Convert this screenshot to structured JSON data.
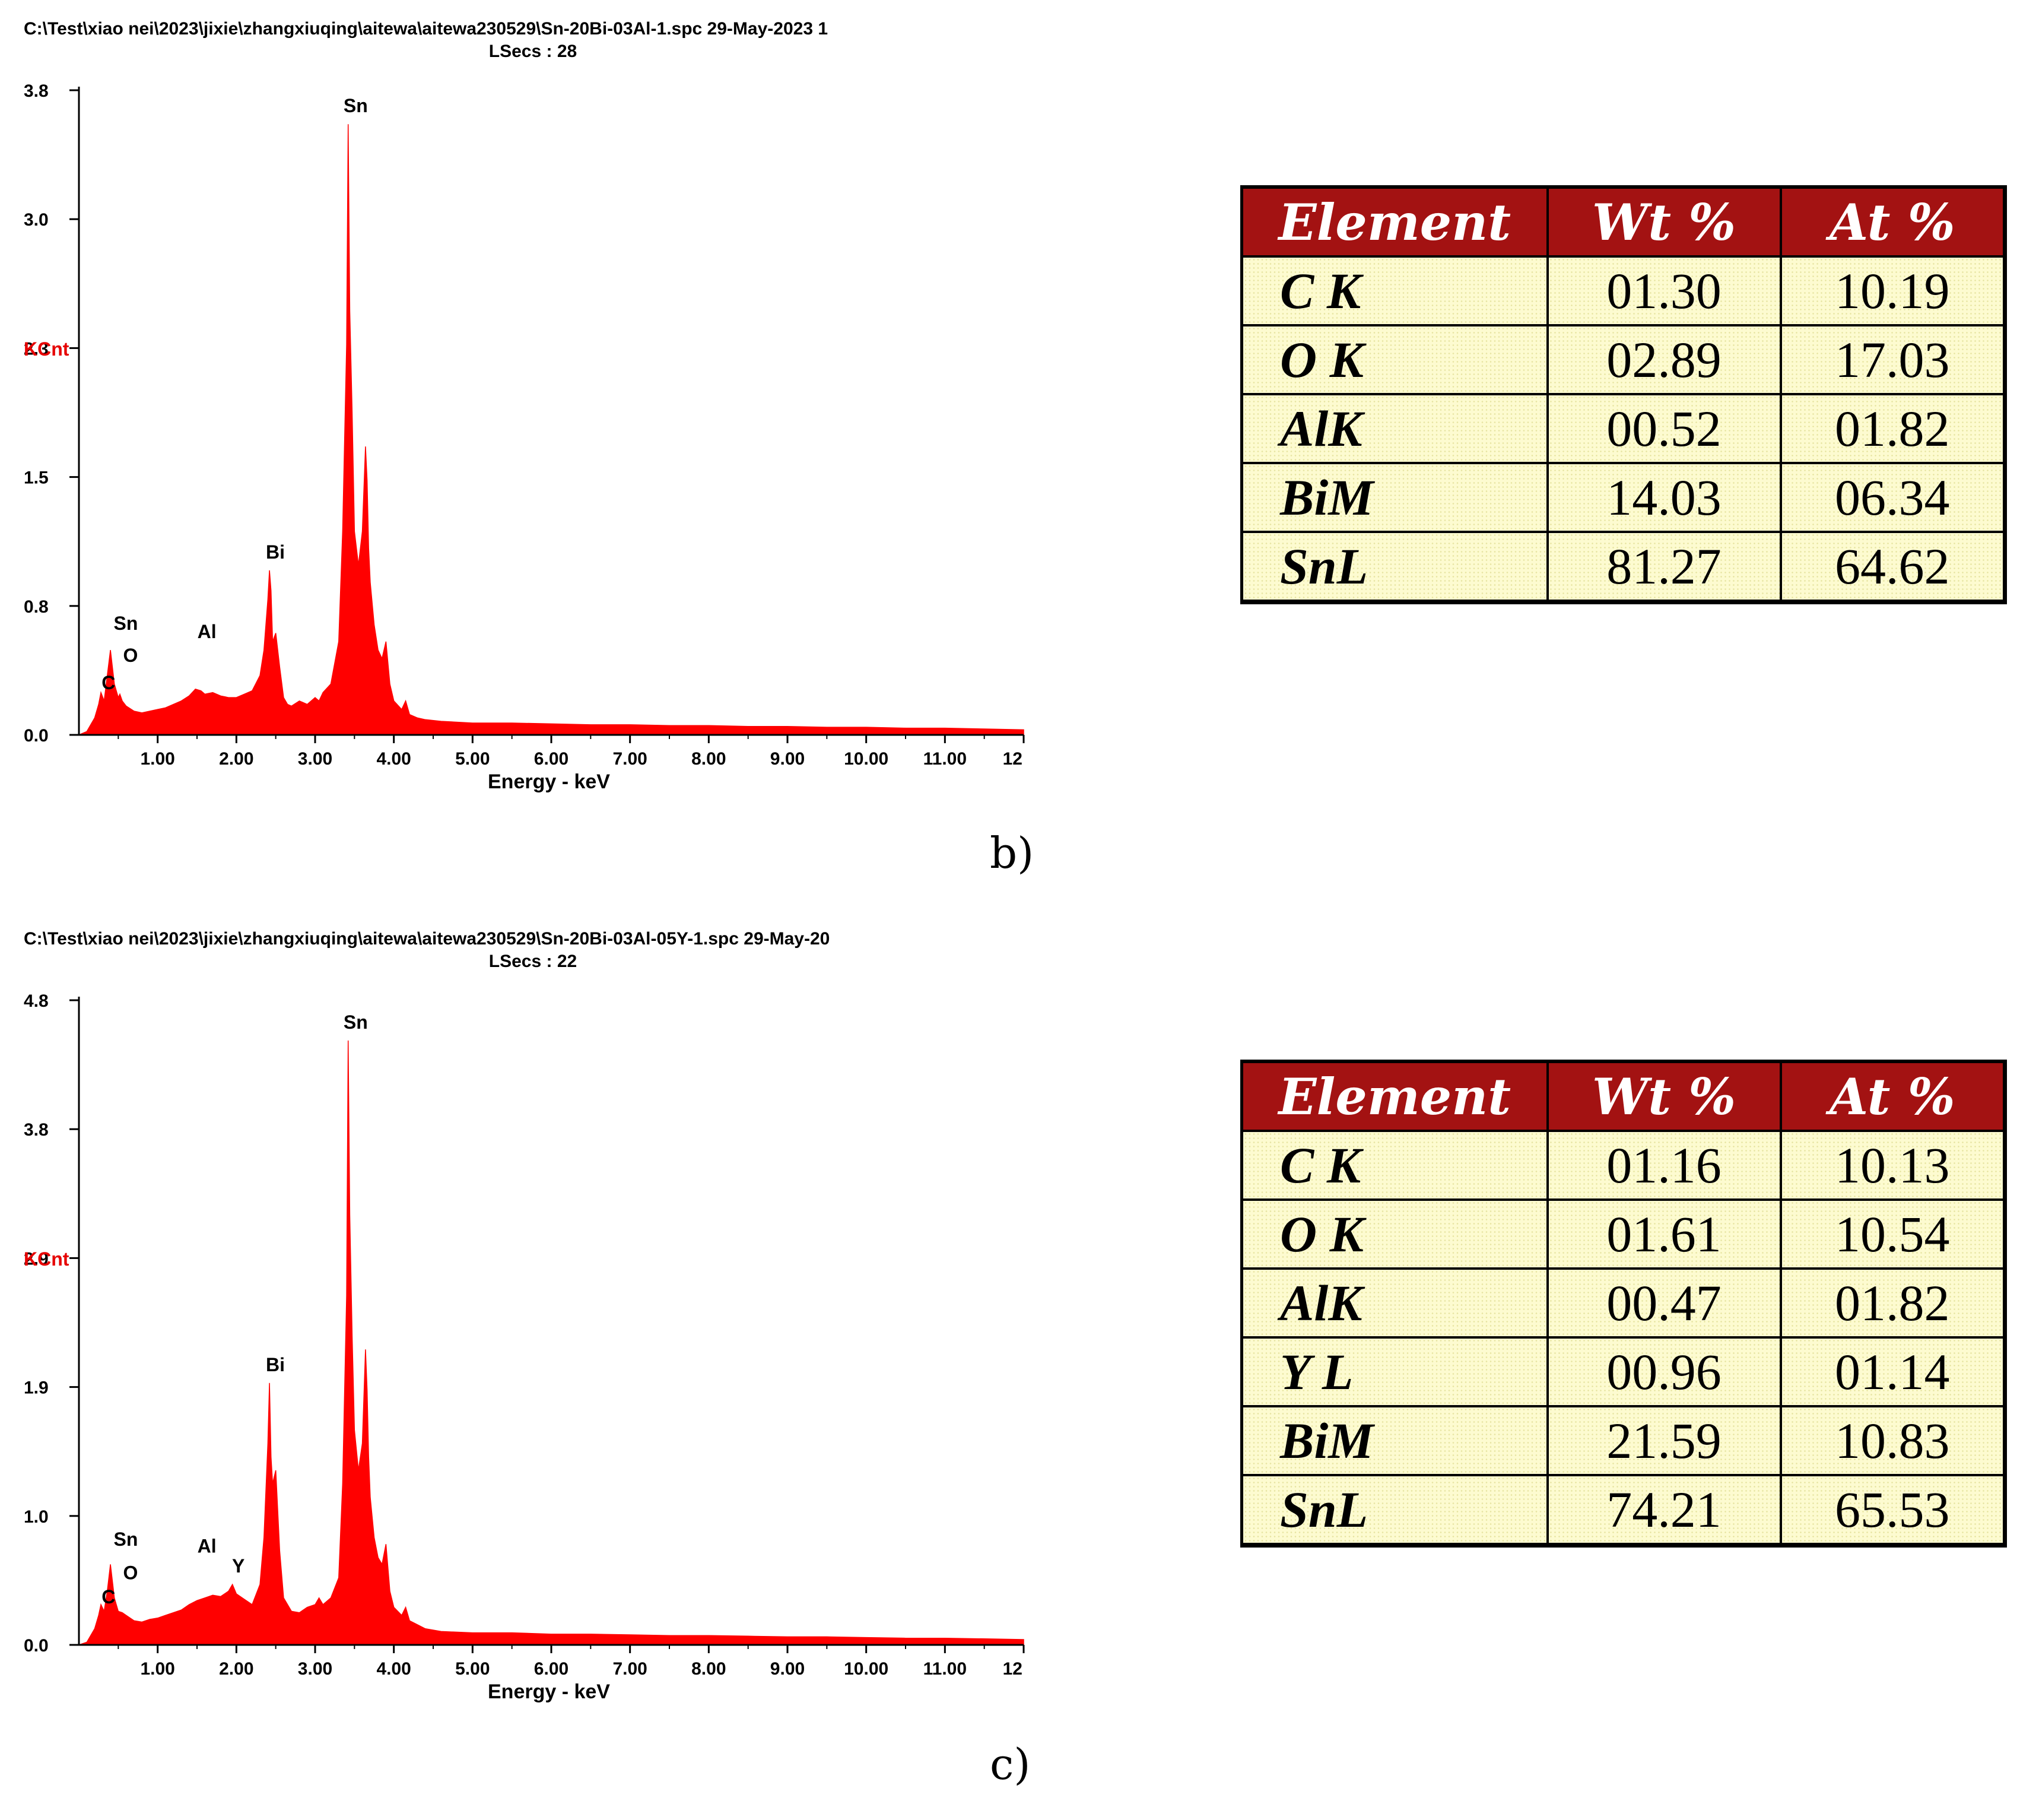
{
  "chart_data": [
    {
      "panel_label": "b)",
      "type": "line",
      "title": "C:\\Test\\xiao nei\\2023\\jixie\\zhangxiuqing\\aitewa\\aitewa230529\\Sn-20Bi-03Al-1.spc  29-May-2023 1",
      "subtitle": "LSecs :  28",
      "xlabel": "Energy - keV",
      "ylabel": "KCnt",
      "xlim": [
        0,
        12
      ],
      "ylim": [
        0,
        3.8
      ],
      "x_ticks": [
        "1.00",
        "2.00",
        "3.00",
        "4.00",
        "5.00",
        "6.00",
        "7.00",
        "8.00",
        "9.00",
        "10.00",
        "11.00",
        "12"
      ],
      "y_ticks": [
        "0.0",
        "0.8",
        "1.5",
        "2.3",
        "3.0",
        "3.8"
      ],
      "color": "#ff0000",
      "series": [
        {
          "x": [
            0.0,
            0.1,
            0.2,
            0.25,
            0.28,
            0.32,
            0.36,
            0.4,
            0.45,
            0.5,
            0.52,
            0.55,
            0.6,
            0.7,
            0.8,
            0.9,
            1.0,
            1.1,
            1.2,
            1.3,
            1.4,
            1.48,
            1.55,
            1.6,
            1.7,
            1.8,
            1.9,
            2.0,
            2.1,
            2.2,
            2.3,
            2.35,
            2.4,
            2.42,
            2.44,
            2.46,
            2.5,
            2.55,
            2.6,
            2.65,
            2.7,
            2.8,
            2.9,
            3.0,
            3.05,
            3.1,
            3.2,
            3.3,
            3.35,
            3.4,
            3.42,
            3.44,
            3.47,
            3.5,
            3.55,
            3.6,
            3.64,
            3.66,
            3.68,
            3.7,
            3.75,
            3.8,
            3.85,
            3.9,
            3.95,
            4.0,
            4.1,
            4.15,
            4.2,
            4.3,
            4.4,
            4.6,
            5.0,
            5.5,
            6.0,
            6.5,
            7.0,
            7.5,
            8.0,
            8.5,
            9.0,
            9.5,
            10.0,
            10.5,
            11.0,
            11.5,
            12.0
          ],
          "y": [
            0.0,
            0.02,
            0.1,
            0.18,
            0.25,
            0.2,
            0.35,
            0.5,
            0.3,
            0.22,
            0.24,
            0.2,
            0.17,
            0.14,
            0.13,
            0.14,
            0.15,
            0.16,
            0.18,
            0.2,
            0.23,
            0.27,
            0.26,
            0.24,
            0.25,
            0.23,
            0.22,
            0.22,
            0.24,
            0.26,
            0.35,
            0.5,
            0.8,
            0.97,
            0.85,
            0.55,
            0.6,
            0.4,
            0.22,
            0.18,
            0.17,
            0.2,
            0.18,
            0.22,
            0.2,
            0.25,
            0.3,
            0.55,
            1.2,
            2.3,
            3.6,
            2.5,
            1.9,
            1.2,
            1.0,
            1.2,
            1.7,
            1.5,
            1.1,
            0.9,
            0.65,
            0.5,
            0.45,
            0.55,
            0.3,
            0.2,
            0.15,
            0.2,
            0.12,
            0.1,
            0.09,
            0.08,
            0.07,
            0.07,
            0.065,
            0.06,
            0.06,
            0.055,
            0.055,
            0.05,
            0.05,
            0.045,
            0.045,
            0.04,
            0.04,
            0.035,
            0.03
          ]
        }
      ],
      "peak_labels": [
        {
          "text": "Sn",
          "x": 3.44,
          "y": 3.6
        },
        {
          "text": "Bi",
          "x": 2.42,
          "y": 0.97
        },
        {
          "text": "Sn",
          "x": 0.52,
          "y": 0.55
        },
        {
          "text": "Al",
          "x": 1.55,
          "y": 0.5
        },
        {
          "text": "O",
          "x": 0.58,
          "y": 0.36
        },
        {
          "text": "C",
          "x": 0.3,
          "y": 0.2
        }
      ]
    },
    {
      "panel_label": "c)",
      "type": "line",
      "title": "C:\\Test\\xiao nei\\2023\\jixie\\zhangxiuqing\\aitewa\\aitewa230529\\Sn-20Bi-03Al-05Y-1.spc  29-May-20",
      "subtitle": "LSecs :  22",
      "xlabel": "Energy - keV",
      "ylabel": "KCnt",
      "xlim": [
        0,
        12
      ],
      "ylim": [
        0,
        4.8
      ],
      "x_ticks": [
        "1.00",
        "2.00",
        "3.00",
        "4.00",
        "5.00",
        "6.00",
        "7.00",
        "8.00",
        "9.00",
        "10.00",
        "11.00",
        "12"
      ],
      "y_ticks": [
        "0.0",
        "1.0",
        "1.9",
        "2.9",
        "3.8",
        "4.8"
      ],
      "color": "#ff0000",
      "series": [
        {
          "x": [
            0.0,
            0.1,
            0.2,
            0.25,
            0.28,
            0.32,
            0.36,
            0.4,
            0.45,
            0.5,
            0.55,
            0.6,
            0.7,
            0.8,
            0.9,
            1.0,
            1.1,
            1.2,
            1.3,
            1.4,
            1.5,
            1.6,
            1.7,
            1.8,
            1.9,
            1.95,
            2.0,
            2.1,
            2.2,
            2.3,
            2.35,
            2.4,
            2.42,
            2.44,
            2.46,
            2.5,
            2.55,
            2.6,
            2.7,
            2.8,
            2.9,
            3.0,
            3.05,
            3.1,
            3.2,
            3.3,
            3.35,
            3.4,
            3.42,
            3.44,
            3.47,
            3.5,
            3.55,
            3.6,
            3.64,
            3.66,
            3.68,
            3.7,
            3.75,
            3.8,
            3.85,
            3.9,
            3.95,
            4.0,
            4.1,
            4.15,
            4.2,
            4.3,
            4.4,
            4.6,
            5.0,
            5.5,
            6.0,
            6.5,
            7.0,
            7.5,
            8.0,
            8.5,
            9.0,
            9.5,
            10.0,
            10.5,
            11.0,
            11.5,
            12.0
          ],
          "y": [
            0.0,
            0.02,
            0.12,
            0.22,
            0.3,
            0.25,
            0.4,
            0.6,
            0.35,
            0.25,
            0.24,
            0.22,
            0.18,
            0.17,
            0.19,
            0.2,
            0.22,
            0.24,
            0.26,
            0.3,
            0.33,
            0.35,
            0.37,
            0.36,
            0.4,
            0.45,
            0.38,
            0.34,
            0.3,
            0.45,
            0.8,
            1.5,
            1.95,
            1.4,
            1.2,
            1.3,
            0.7,
            0.35,
            0.25,
            0.24,
            0.28,
            0.3,
            0.35,
            0.3,
            0.35,
            0.5,
            1.2,
            2.6,
            4.5,
            3.2,
            2.3,
            1.6,
            1.3,
            1.5,
            2.2,
            1.9,
            1.4,
            1.1,
            0.8,
            0.65,
            0.6,
            0.75,
            0.4,
            0.28,
            0.22,
            0.28,
            0.18,
            0.15,
            0.12,
            0.1,
            0.09,
            0.09,
            0.08,
            0.08,
            0.075,
            0.07,
            0.07,
            0.065,
            0.06,
            0.06,
            0.055,
            0.05,
            0.05,
            0.045,
            0.04
          ]
        }
      ],
      "peak_labels": [
        {
          "text": "Sn",
          "x": 3.44,
          "y": 4.5
        },
        {
          "text": "Bi",
          "x": 2.42,
          "y": 1.95
        },
        {
          "text": "Sn",
          "x": 0.52,
          "y": 0.65
        },
        {
          "text": "Al",
          "x": 1.55,
          "y": 0.6
        },
        {
          "text": "Y",
          "x": 1.95,
          "y": 0.45
        },
        {
          "text": "O",
          "x": 0.58,
          "y": 0.4
        },
        {
          "text": "C",
          "x": 0.3,
          "y": 0.22
        }
      ]
    }
  ],
  "tables": [
    {
      "headers": [
        "Element",
        "Wt %",
        "At %"
      ],
      "rows": [
        [
          "C K",
          "01.30",
          "10.19"
        ],
        [
          "O K",
          "02.89",
          "17.03"
        ],
        [
          "AlK",
          "00.52",
          "01.82"
        ],
        [
          "BiM",
          "14.03",
          "06.34"
        ],
        [
          "SnL",
          "81.27",
          "64.62"
        ]
      ]
    },
    {
      "headers": [
        "Element",
        "Wt %",
        "At %"
      ],
      "rows": [
        [
          "C K",
          "01.16",
          "10.13"
        ],
        [
          "O K",
          "01.61",
          "10.54"
        ],
        [
          "AlK",
          "00.47",
          "01.82"
        ],
        [
          "Y L",
          "00.96",
          "01.14"
        ],
        [
          "BiM",
          "21.59",
          "10.83"
        ],
        [
          "SnL",
          "74.21",
          "65.53"
        ]
      ]
    }
  ]
}
